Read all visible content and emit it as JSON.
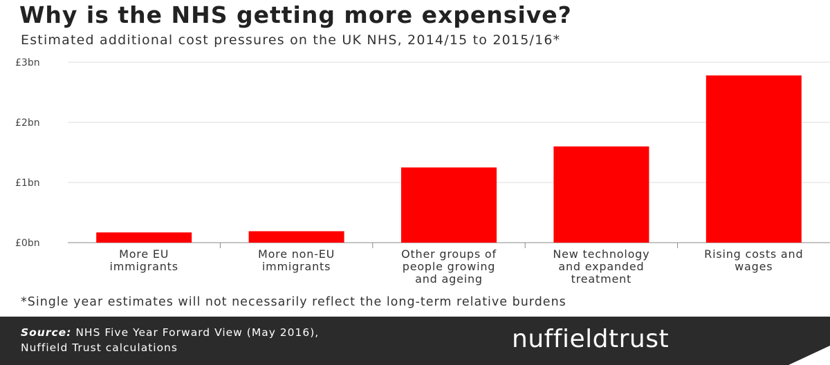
{
  "title": "Why is the NHS getting more expensive?",
  "subtitle": "Estimated additional cost pressures on the UK NHS, 2014/15 to 2015/16*",
  "chart_data": {
    "type": "bar",
    "categories": [
      [
        "More EU",
        "immigrants"
      ],
      [
        "More non-EU",
        "immigrants"
      ],
      [
        "Other groups of",
        "people growing",
        "and ageing"
      ],
      [
        "New technology",
        "and expanded",
        "treatment"
      ],
      [
        "Rising costs and",
        "wages"
      ]
    ],
    "values": [
      0.17,
      0.19,
      1.25,
      1.6,
      2.78
    ],
    "unit": "£bn",
    "ylim": [
      0,
      3
    ],
    "yticks": [
      0,
      1,
      2,
      3
    ],
    "ytick_labels": [
      "£0bn",
      "£1bn",
      "£2bn",
      "£3bn"
    ],
    "bar_color": "#ff0000",
    "grid": true
  },
  "footnote": "*Single year estimates will not necessarily reflect the long-term relative burdens",
  "source": {
    "label": "Source:",
    "line1": " NHS Five Year Forward View (May 2016),",
    "line2": "Nuffield Trust calculations"
  },
  "logo_text": "nuffieldtrust",
  "footer_color": "#2b2b2b"
}
